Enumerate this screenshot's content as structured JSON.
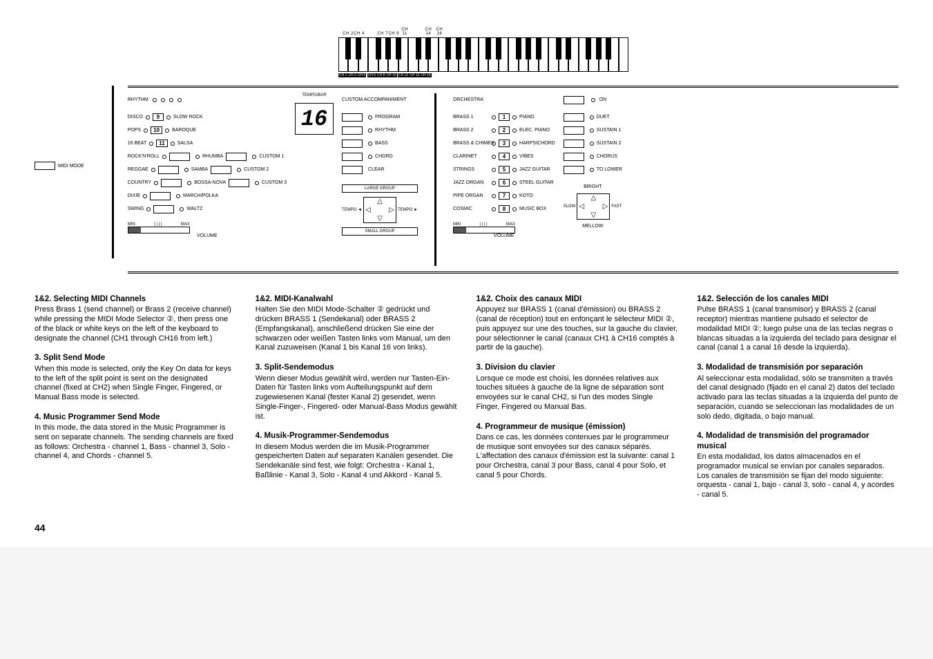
{
  "keyboard": {
    "top_ch": [
      "CH 2",
      "CH 4",
      "",
      "CH 7",
      "CH 9",
      "CH 11",
      "",
      "CH 14",
      "CH 16"
    ],
    "bot_ch": [
      "CH 1",
      "CH 3",
      "CH 5",
      "CH 6",
      "CH 8",
      "CH 10",
      "CH 12",
      "CH 13",
      "CH 15"
    ]
  },
  "midi_mode": "MIDI MODE",
  "rhythm": {
    "header": "RHYTHM",
    "left": [
      "DISCO",
      "POPS",
      "16 BEAT",
      "ROCK'N'ROLL",
      "REGGAE",
      "COUNTRY",
      "DIXIE",
      "SWING"
    ],
    "nums": [
      "9",
      "10",
      "11",
      "",
      "",
      "",
      "",
      ""
    ],
    "mid": [
      "SLOW ROCK",
      "BAROQUE",
      "SALSA",
      "RHUMBA",
      "SAMBA",
      "BOSSA-NOVA",
      "MARCH/POLKA",
      "WALTZ"
    ],
    "right": [
      "",
      "",
      "",
      "CUSTOM 1",
      "CUSTOM 2",
      "CUSTOM 3",
      "",
      ""
    ],
    "tempo_bar": "TEMPO/BAR",
    "tempo_value": "16",
    "vol_min": "MIN",
    "vol_max": "MAX",
    "volume": "VOLUME"
  },
  "accomp": {
    "header": "CUSTOM ACCOMPANIMENT",
    "rows": [
      "PROGRAM",
      "RHYTHM",
      "BASS",
      "CHORD",
      "CLEAR"
    ],
    "large": "LARGE GROUP",
    "small": "SMALL GROUP",
    "tempo_l": "TEMPO ◄",
    "tempo_r": "TEMPO ►"
  },
  "orch": {
    "header": "ORCHESTRA",
    "left": [
      "BRASS 1",
      "BRASS 2",
      "BRASS & CHIMES",
      "CLARINET",
      "STRINGS",
      "JAZZ ORGAN",
      "PIPE ORGAN",
      "COSMIC"
    ],
    "nums": [
      "1",
      "2",
      "3",
      "4",
      "5",
      "6",
      "7",
      "8"
    ],
    "right": [
      "PIANO",
      "ELEC. PIANO",
      "HARPSICHORD",
      "VIBES",
      "JAZZ GUITAR",
      "STEEL GUITAR",
      "KOTO",
      "MUSIC BOX"
    ],
    "on": "ON",
    "col3": [
      "DUET",
      "SUSTAIN 1",
      "SUSTAIN 2",
      "CHORUS",
      "TO LOWER"
    ],
    "bright": "BRIGHT",
    "mellow": "MELLOW",
    "slow": "SLOW",
    "fast": "FAST",
    "vol_min": "MIN",
    "vol_max": "MAX",
    "volume": "VOLUME"
  },
  "text": {
    "en": {
      "h1": "1&2. Selecting MIDI Channels",
      "p1": "Press Brass 1 (send channel) or Brass 2 (receive channel) while pressing the MIDI Mode Selector ②, then press one of the black or white keys on the left of the keyboard to designate the channel (CH1 through CH16 from left.)",
      "h2": "3. Split Send Mode",
      "p2": "When this mode is selected, only the Key On data for keys to the left of the split point is sent on the designated channel (fixed at CH2) when Single Finger, Fingered, or Manual Bass mode is selected.",
      "h3": "4. Music Programmer Send Mode",
      "p3": "In this mode, the data stored in the Music Programmer is sent on separate channels. The sending channels are fixed as follows: Orchestra - channel 1, Bass - channel 3, Solo - channel 4, and Chords - channel 5."
    },
    "de": {
      "h1": "1&2. MIDI-Kanalwahl",
      "p1": "Halten Sie den MIDI Mode-Schalter ② gedrückt und drücken BRASS 1 (Sendekanal) oder BRASS 2 (Empfangskanal), anschließend drücken Sie eine der schwarzen oder weißen Tasten links vom Manual, um den Kanal zuzuweisen (Kanal 1 bis Kanal 16 von links).",
      "h2": "3. Split-Sendemodus",
      "p2": "Wenn dieser Modus gewählt wird, werden nur Tasten-Ein-Daten für Tasten links vom Aufteilungspunkt auf dem zugewiesenen Kanal (fester Kanal 2) gesendet, wenn Single-Finger-, Fingered- oder Manual-Bass Modus gewählt ist.",
      "h3": "4. Musik-Programmer-Sendemodus",
      "p3": "In diesem Modus werden die im Musik-Programmer gespeicherten Daten auf separaten Kanälen gesendet. Die Sendekanäle sind fest, wie folgt: Orchestra - Kanal 1, Baßlinie - Kanal 3, Solo - Kanal 4 und Akkord - Kanal 5."
    },
    "fr": {
      "h1": "1&2. Choix des canaux MIDI",
      "p1": "Appuyez sur BRASS 1 (canal d'émission) ou BRASS 2 (canal de réception) tout en enfonçant le sélecteur MIDI ②, puis appuyez sur une des touches, sur la gauche du clavier, pour sélectionner le canal (canaux CH1 à CH16 comptés à partir de la gauche).",
      "h2": "3. Division du clavier",
      "p2": "Lorsque ce mode est choisi, les données relatives aux touches situées à gauche de la ligne de séparation sont envoyées sur le canal CH2, si l'un des modes Single Finger, Fingered ou Manual Bas.",
      "h3": "4. Programmeur de musique (émission)",
      "p3": "Dans ce cas, les données contenues par le programmeur de musique sont envoyées sur des canaux séparés. L'affectation des canaux d'émission est la suivante: canal 1 pour Orchestra, canal 3 pour Bass, canal 4 pour Solo, et canal 5 pour Chords."
    },
    "es": {
      "h1": "1&2. Selección de los canales MIDI",
      "p1": "Pulse BRASS 1 (canal transmisor) y BRASS 2 (canal receptor) mientras mantiene pulsado el selector de modalidad MIDI ②; luego pulse una de las teclas negras o blancas situadas a la izquierda del teclado para designar el canal (canal 1 a canal 16 desde la izquierda).",
      "h2": "3. Modalidad de transmisión por separación",
      "p2": "Al seleccionar esta modalidad, sólo se transmiten a través del canal designado (fijado en el canal 2) datos del teclado activado para las teclas situadas a la izquierda del punto de separación, cuando se seleccionan las modalidades de un solo dedo, digitada, o bajo manual.",
      "h3": "4. Modalidad de transmisión del programador musical",
      "p3": "En esta modalidad, los datos almacenados en el programador musical se envían por canales separados. Los canales de transmisión se fijan del modo siguiente: orquesta - canal 1, bajo - canal 3, solo - canal 4, y acordes - canal 5."
    }
  },
  "page_num": "44"
}
